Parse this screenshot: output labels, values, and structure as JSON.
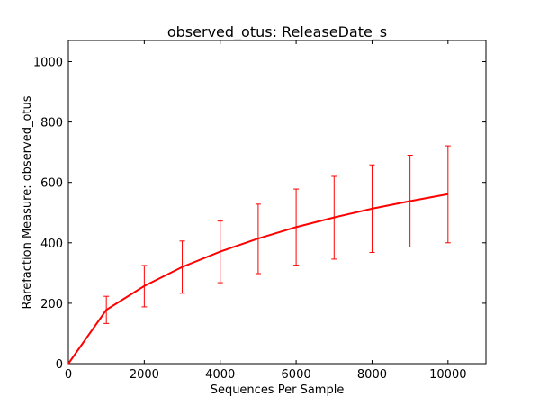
{
  "chart_data": {
    "type": "line",
    "title": "observed_otus: ReleaseDate_s",
    "xlabel": "Sequences Per Sample",
    "ylabel": "Rarefaction Measure: observed_otus",
    "xlim": [
      0,
      11000
    ],
    "ylim": [
      0,
      1070
    ],
    "xticks": [
      0,
      2000,
      4000,
      6000,
      8000,
      10000
    ],
    "yticks": [
      0,
      200,
      400,
      600,
      800,
      1000
    ],
    "grid": false,
    "line_color": "#ff0000",
    "series": [
      {
        "x": [
          0,
          1000,
          2000,
          3000,
          4000,
          5000,
          6000,
          7000,
          8000,
          9000,
          10000
        ],
        "y": [
          0,
          178,
          257,
          320,
          371,
          414,
          452,
          484,
          513,
          538,
          561
        ],
        "err_low": [
          null,
          133,
          188,
          233,
          268,
          298,
          326,
          346,
          368,
          386,
          400
        ],
        "err_high": [
          null,
          223,
          325,
          406,
          472,
          528,
          578,
          620,
          658,
          690,
          721
        ]
      }
    ]
  }
}
